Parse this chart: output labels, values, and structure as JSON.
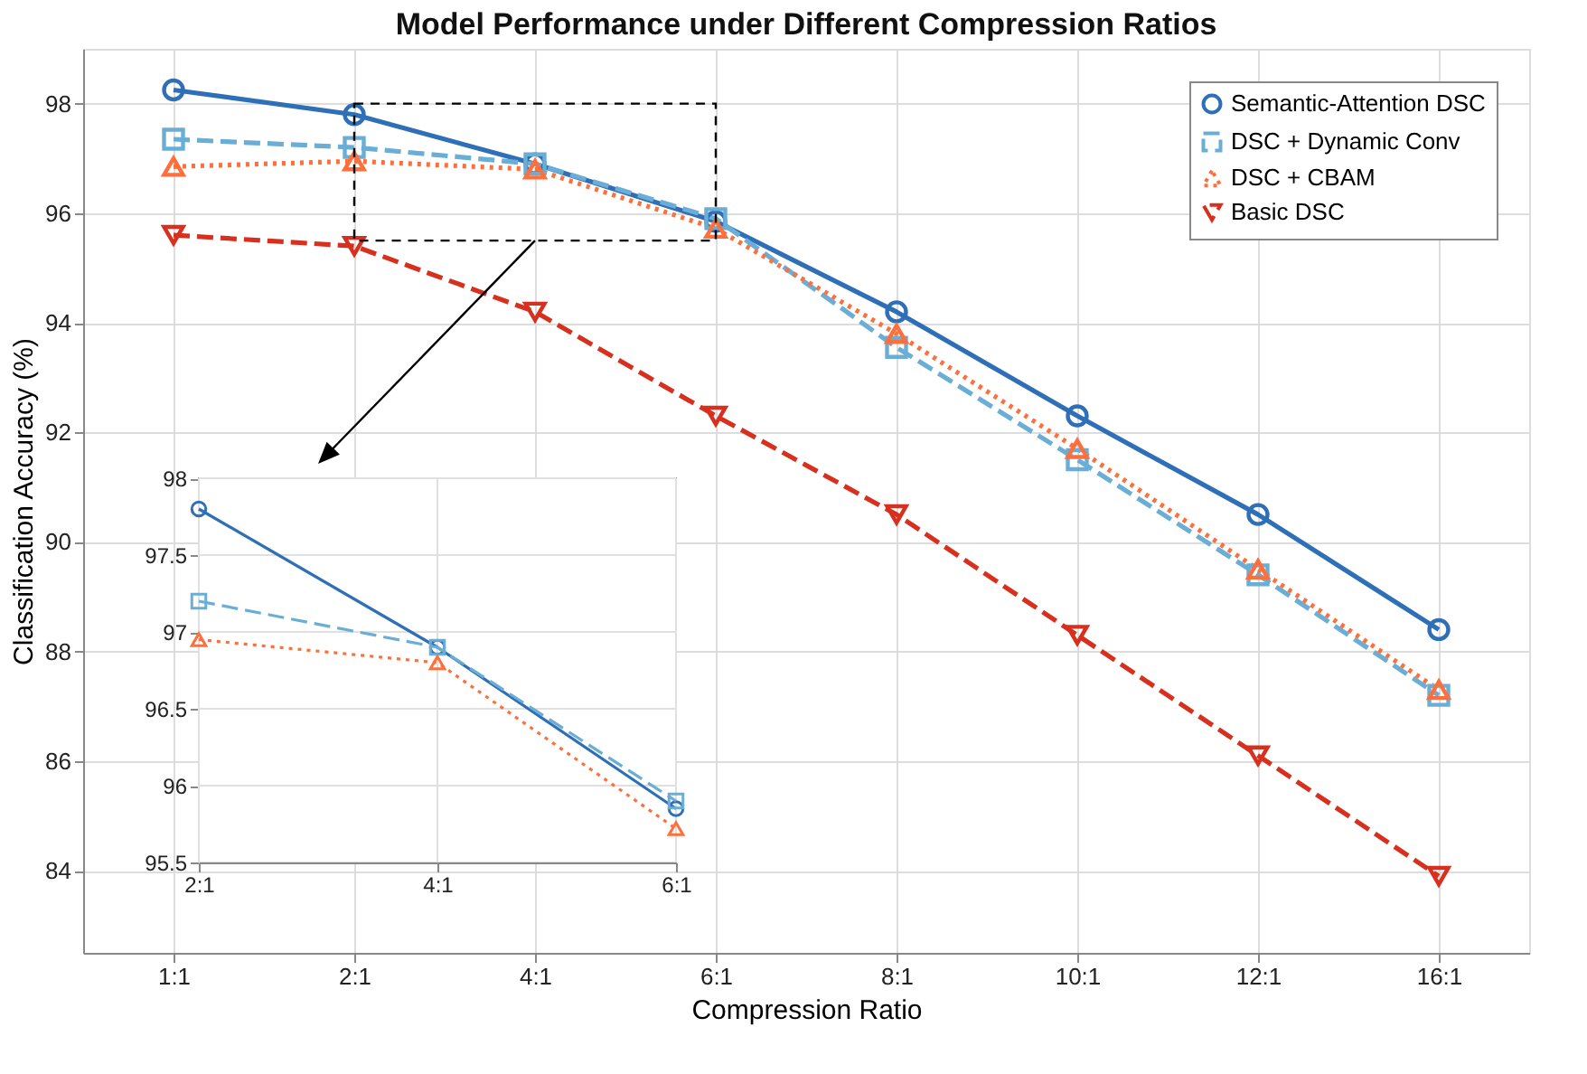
{
  "chart_data": [
    {
      "type": "line",
      "title": "Model Performance under Different Compression Ratios",
      "xlabel": "Compression Ratio",
      "ylabel": "Classification Accuracy (%)",
      "categories": [
        "1:1",
        "2:1",
        "4:1",
        "6:1",
        "8:1",
        "10:1",
        "12:1",
        "16:1"
      ],
      "ylim": [
        82.5,
        99
      ],
      "yticks": [
        84,
        86,
        88,
        90,
        92,
        94,
        96,
        98
      ],
      "grid": true,
      "legend": "top right",
      "series": [
        {
          "name": "Semantic-Attention DSC",
          "color": "#2e6fb7",
          "marker": "circle",
          "line_style": "solid",
          "values": [
            98.25,
            97.8,
            96.9,
            95.85,
            94.2,
            92.3,
            90.5,
            88.4
          ]
        },
        {
          "name": "DSC + Dynamic Conv",
          "color": "#6aaed6",
          "marker": "square",
          "line_style": "dashed",
          "values": [
            97.35,
            97.2,
            96.9,
            95.9,
            93.55,
            91.5,
            89.4,
            87.2
          ]
        },
        {
          "name": "DSC + CBAM",
          "color": "#ff6f3c",
          "marker": "triangle",
          "line_style": "dotted",
          "values": [
            96.85,
            96.95,
            96.8,
            95.72,
            93.8,
            91.7,
            89.5,
            87.3
          ]
        },
        {
          "name": "Basic DSC",
          "color": "#d7301f",
          "marker": "triangle-down",
          "line_style": "dashed",
          "values": [
            95.6,
            95.4,
            94.2,
            92.3,
            90.5,
            88.3,
            86.1,
            83.9
          ]
        }
      ]
    },
    {
      "type": "line",
      "categories": [
        "2:1",
        "4:1",
        "6:1"
      ],
      "ylim": [
        95.5,
        98
      ],
      "yticks": [
        95.5,
        96,
        96.5,
        97,
        97.5,
        98
      ],
      "grid": true,
      "series": [
        {
          "color": "#2e6fb7",
          "marker": "circle",
          "line_style": "solid",
          "values": [
            97.8,
            96.9,
            95.85
          ]
        },
        {
          "color": "#6aaed6",
          "marker": "square",
          "line_style": "dashed",
          "values": [
            97.2,
            96.9,
            95.9
          ]
        },
        {
          "color": "#ff6f3c",
          "marker": "triangle",
          "line_style": "dotted",
          "values": [
            96.95,
            96.8,
            95.72
          ]
        }
      ]
    }
  ]
}
